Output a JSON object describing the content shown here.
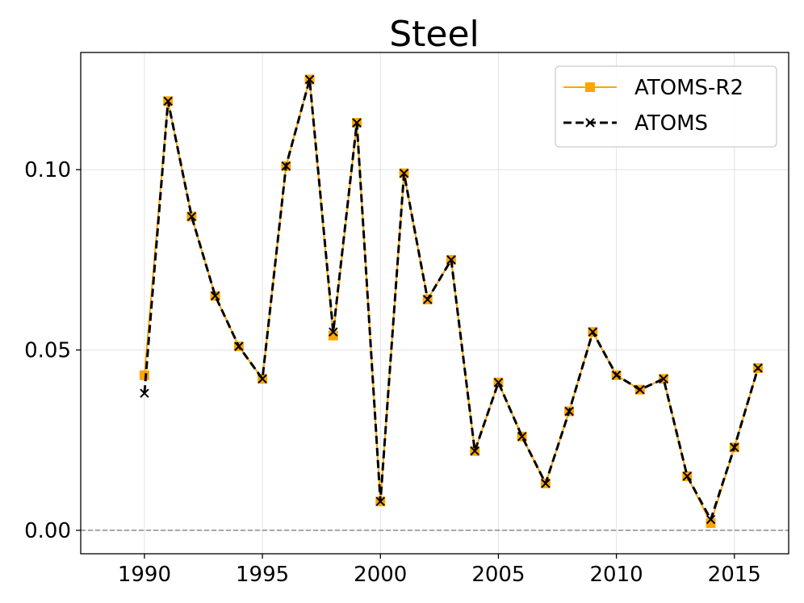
{
  "chart_data": {
    "type": "line",
    "title": "Steel",
    "xlabel": "",
    "ylabel": "",
    "x": [
      1990,
      1991,
      1992,
      1993,
      1994,
      1995,
      1996,
      1997,
      1998,
      1999,
      2000,
      2001,
      2002,
      2003,
      2004,
      2005,
      2006,
      2007,
      2008,
      2009,
      2010,
      2011,
      2012,
      2013,
      2014,
      2015,
      2016
    ],
    "xlim": [
      1987.3,
      2017.3
    ],
    "ylim": [
      -0.0065,
      0.1325
    ],
    "xticks": [
      1990,
      1995,
      2000,
      2005,
      2010,
      2015
    ],
    "xtick_labels": [
      "1990",
      "1995",
      "2000",
      "2005",
      "2010",
      "2015"
    ],
    "yticks": [
      0.0,
      0.05,
      0.1
    ],
    "ytick_labels": [
      "0.00",
      "0.05",
      "0.10"
    ],
    "grid": true,
    "reference_line": {
      "y": 0.0,
      "style": "dashed",
      "color": "#808080"
    },
    "legend_position": "top-right",
    "series": [
      {
        "name": "ATOMS-R2",
        "color": "#FFA500",
        "marker": "square",
        "linestyle": "solid",
        "values": [
          0.043,
          0.119,
          0.087,
          0.065,
          0.051,
          0.042,
          0.101,
          0.125,
          0.054,
          0.113,
          0.008,
          0.099,
          0.064,
          0.075,
          0.022,
          0.041,
          0.026,
          0.013,
          0.033,
          0.055,
          0.043,
          0.039,
          0.042,
          0.015,
          0.002,
          0.023,
          0.045
        ]
      },
      {
        "name": "ATOMS",
        "color": "#000000",
        "marker": "x",
        "linestyle": "dashed",
        "values": [
          0.038,
          0.119,
          0.087,
          0.065,
          0.051,
          0.042,
          0.101,
          0.125,
          0.055,
          0.113,
          0.008,
          0.099,
          0.064,
          0.075,
          0.022,
          0.041,
          0.026,
          0.013,
          0.033,
          0.055,
          0.043,
          0.039,
          0.042,
          0.015,
          0.003,
          0.023,
          0.045
        ]
      }
    ]
  }
}
